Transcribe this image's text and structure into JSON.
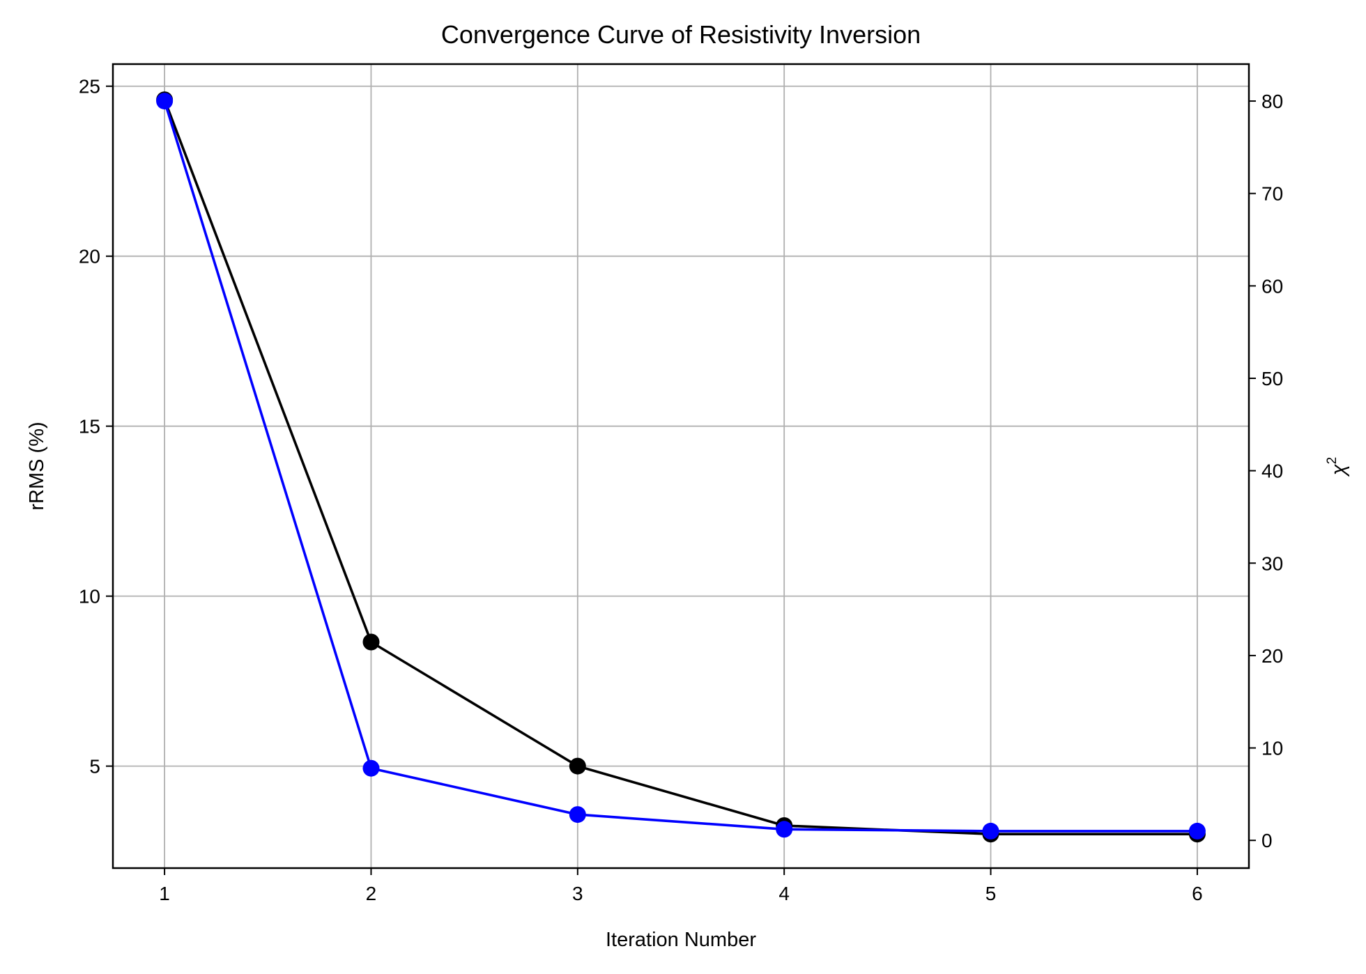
{
  "chart_data": {
    "type": "line",
    "title": "Convergence Curve of Resistivity Inversion",
    "xlabel": "Iteration Number",
    "ylabel": "rRMS (%)",
    "y2label_base": "χ",
    "y2label_sup": "2",
    "x": [
      1,
      2,
      3,
      4,
      5,
      6
    ],
    "xlim": [
      0.75,
      6.25
    ],
    "ylim": [
      2.0,
      25.65
    ],
    "y2lim": [
      -3.0,
      84.0
    ],
    "x_ticks": [
      "1",
      "2",
      "3",
      "4",
      "5",
      "6"
    ],
    "y_ticks": [
      "5",
      "10",
      "15",
      "20",
      "25"
    ],
    "y2_ticks": [
      "0",
      "10",
      "20",
      "30",
      "40",
      "50",
      "60",
      "70",
      "80"
    ],
    "grid": true,
    "series": [
      {
        "axis": "left",
        "color": "#000000",
        "values": [
          24.6,
          8.65,
          5.0,
          3.25,
          3.0,
          3.0
        ]
      },
      {
        "axis": "right",
        "color": "#0000ff",
        "values": [
          80.0,
          7.8,
          2.8,
          1.2,
          1.0,
          1.0
        ]
      }
    ],
    "colors": {
      "frame": "#000000",
      "grid": "#b0b0b0",
      "y2label": "#0000ff"
    }
  }
}
